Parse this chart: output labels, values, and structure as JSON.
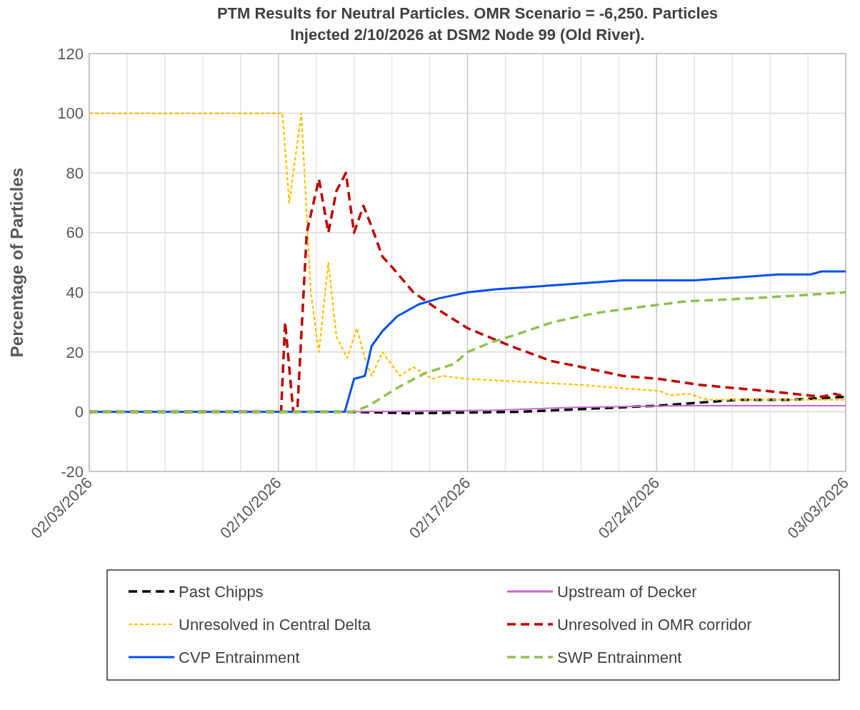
{
  "chart_data": {
    "type": "line",
    "title": "PTM Results for Neutral Particles. OMR Scenario = -6,250. Particles Injected 2/10/2026 at DSM2 Node 99 (Old River).",
    "ylabel": "Percentage of Particles",
    "xlim": [
      "2026-02-03",
      "2026-03-03"
    ],
    "xticks": [
      {
        "value": "2026-02-03",
        "label": "02/03/2026"
      },
      {
        "value": "2026-02-04T09:36",
        "label": null
      },
      {
        "value": "2026-02-05T19:12",
        "label": null
      },
      {
        "value": "2026-02-07T04:48",
        "label": null
      },
      {
        "value": "2026-02-08T14:24",
        "label": null
      },
      {
        "value": "2026-02-10",
        "label": "02/10/2026"
      },
      {
        "value": "2026-02-11T09:36",
        "label": null
      },
      {
        "value": "2026-02-12T19:12",
        "label": null
      },
      {
        "value": "2026-02-14T04:48",
        "label": null
      },
      {
        "value": "2026-02-15T14:24",
        "label": null
      },
      {
        "value": "2026-02-17",
        "label": "02/17/2026"
      },
      {
        "value": "2026-02-18T09:36",
        "label": null
      },
      {
        "value": "2026-02-19T19:12",
        "label": null
      },
      {
        "value": "2026-02-21T04:48",
        "label": null
      },
      {
        "value": "2026-02-22T14:24",
        "label": null
      },
      {
        "value": "2026-02-24",
        "label": "02/24/2026"
      },
      {
        "value": "2026-02-25T09:36",
        "label": null
      },
      {
        "value": "2026-02-26T19:12",
        "label": null
      },
      {
        "value": "2026-02-28T04:48",
        "label": null
      },
      {
        "value": "2026-03-01T14:24",
        "label": null
      },
      {
        "value": "2026-03-03",
        "label": "03/03/2026"
      }
    ],
    "ylim": [
      -20,
      120
    ],
    "yticks": [
      -20,
      0,
      20,
      40,
      60,
      80,
      100,
      120
    ],
    "grid": true,
    "legend": "bottom",
    "series": [
      {
        "name": "Past Chipps",
        "color": "#000000",
        "line_style": "dashed",
        "x": [
          "2026-02-03",
          "2026-02-12T12:00",
          "2026-02-15",
          "2026-02-19",
          "2026-02-21T12:00",
          "2026-02-24",
          "2026-02-25T12:00",
          "2026-02-27",
          "2026-03-01",
          "2026-03-03"
        ],
        "values": [
          0,
          0,
          -0.5,
          0,
          1,
          2,
          3,
          4,
          4,
          5
        ]
      },
      {
        "name": "Upstream of Decker",
        "color": "#cc66cc",
        "line_style": "solid",
        "x": [
          "2026-02-03",
          "2026-02-12T12:00",
          "2026-02-18",
          "2026-02-21",
          "2026-02-25",
          "2026-03-03"
        ],
        "values": [
          0,
          0,
          0.5,
          1.5,
          2,
          2
        ]
      },
      {
        "name": "Unresolved in Central Delta",
        "color": "#ffc000",
        "line_style": "dotted",
        "x": [
          "2026-02-03",
          "2026-02-10T03:36",
          "2026-02-10T09:36",
          "2026-02-10T20:24",
          "2026-02-11T04:48",
          "2026-02-11T12:00",
          "2026-02-11T20:24",
          "2026-02-12T03:36",
          "2026-02-12T13:12",
          "2026-02-12T21:36",
          "2026-02-13T04:48",
          "2026-02-13T10:48",
          "2026-02-13T20:24",
          "2026-02-14T12:00",
          "2026-02-15",
          "2026-02-15T16:48",
          "2026-02-16T02:24",
          "2026-02-17",
          "2026-02-19T02:24",
          "2026-02-21T04:48",
          "2026-02-22T12:00",
          "2026-02-24T02:24",
          "2026-02-24T12:00",
          "2026-02-25T04:48",
          "2026-02-25T21:36",
          "2026-03-03"
        ],
        "values": [
          100,
          100,
          70,
          100,
          40,
          20,
          50,
          25,
          18,
          28,
          18,
          12,
          20,
          12,
          15,
          11,
          12,
          11,
          10,
          9,
          8,
          7,
          5.5,
          6,
          4,
          4
        ]
      },
      {
        "name": "Unresolved in OMR corridor",
        "color": "#c00000",
        "line_style": "dashed",
        "x": [
          "2026-02-03",
          "2026-02-10T02:24",
          "2026-02-10T06:00",
          "2026-02-10T13:12",
          "2026-02-10T16:48",
          "2026-02-11T01:12",
          "2026-02-11T12:00",
          "2026-02-11T20:24",
          "2026-02-12T03:36",
          "2026-02-12T12:00",
          "2026-02-12T19:12",
          "2026-02-13T03:36",
          "2026-02-13T10:48",
          "2026-02-13T20:24",
          "2026-02-14T06:00",
          "2026-02-15",
          "2026-02-15T22:48",
          "2026-02-17",
          "2026-02-18T14:24",
          "2026-02-20T02:24",
          "2026-02-21T04:48",
          "2026-02-22T18:00",
          "2026-02-24T02:24",
          "2026-02-25T14:24",
          "2026-02-28",
          "2026-03-02T02:24",
          "2026-03-02T14:24",
          "2026-03-03"
        ],
        "values": [
          0,
          0,
          30,
          0,
          0,
          60,
          78,
          60,
          74,
          80,
          60,
          69,
          62,
          52,
          48,
          40,
          34,
          28,
          22,
          17,
          15,
          12,
          11,
          9,
          7,
          5,
          6,
          5
        ]
      },
      {
        "name": "CVP Entrainment",
        "color": "#0050f0",
        "line_style": "solid",
        "x": [
          "2026-02-03",
          "2026-02-12T11:00",
          "2026-02-12T19:12",
          "2026-02-13T04:48",
          "2026-02-13T10:48",
          "2026-02-13T20:24",
          "2026-02-14T09:36",
          "2026-02-15T04:48",
          "2026-02-15T22:48",
          "2026-02-17",
          "2026-02-18T01:12",
          "2026-02-19T14:24",
          "2026-02-21T04:48",
          "2026-02-22T18:00",
          "2026-02-25T09:36",
          "2026-02-26T22:48",
          "2026-02-28T12:00",
          "2026-03-01T16:48",
          "2026-03-02T02:24",
          "2026-03-03"
        ],
        "values": [
          0,
          0,
          11,
          12,
          22,
          27,
          32,
          36,
          38,
          40,
          41,
          42,
          43,
          44,
          44,
          45,
          46,
          46,
          47,
          47
        ]
      },
      {
        "name": "SWP Entrainment",
        "color": "#92c050",
        "line_style": "dashed",
        "x": [
          "2026-02-03",
          "2026-02-12T18:00",
          "2026-02-13T08:24",
          "2026-02-14T09:36",
          "2026-02-15T10:48",
          "2026-02-16T12:00",
          "2026-02-17",
          "2026-02-17T19:12",
          "2026-02-18T20:24",
          "2026-02-20T03:36",
          "2026-02-21T16:48",
          "2026-02-23T07:12",
          "2026-02-25T02:24",
          "2026-02-27T12:00",
          "2026-03-01T07:12",
          "2026-03-03"
        ],
        "values": [
          0,
          0,
          2,
          8,
          13,
          16,
          20,
          23,
          26,
          30,
          33,
          35,
          37,
          38,
          39,
          40
        ]
      }
    ]
  }
}
